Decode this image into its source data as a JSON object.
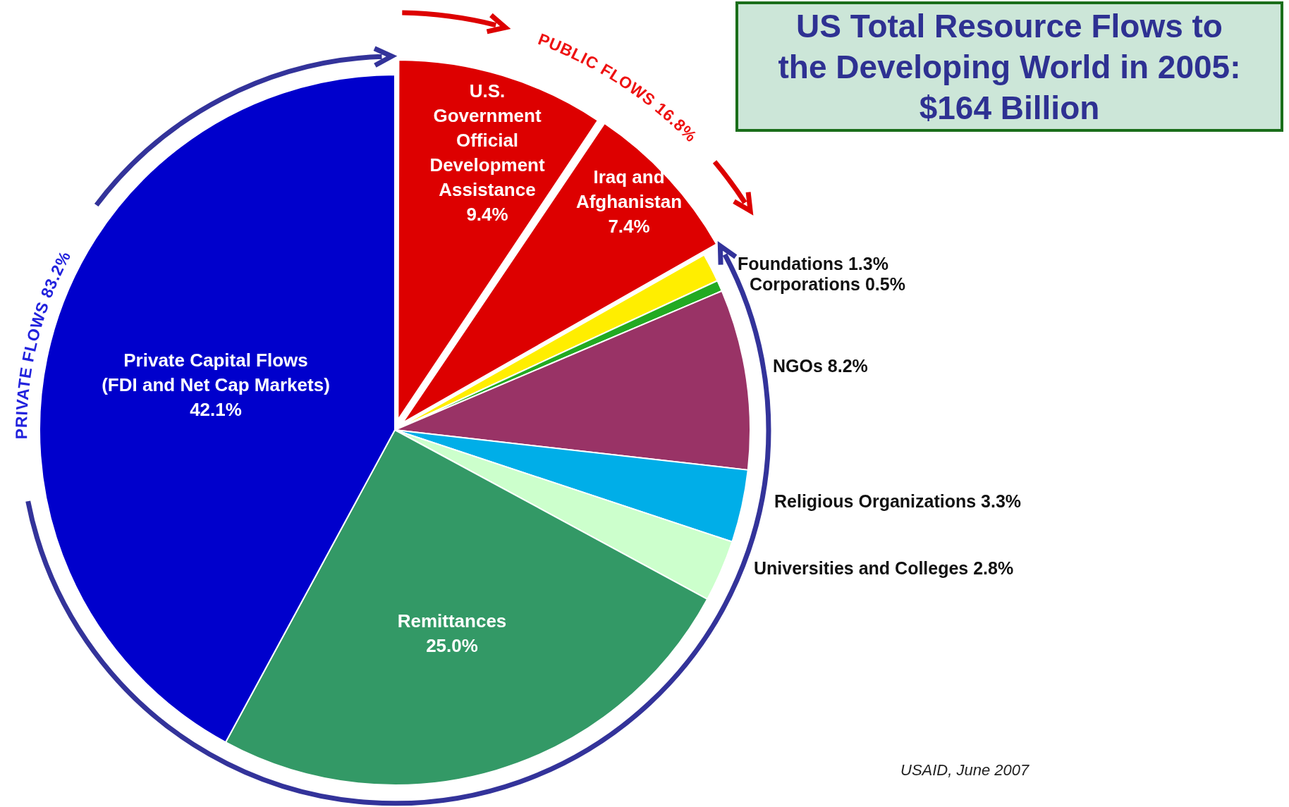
{
  "chart_data": {
    "type": "pie",
    "title": "US Total Resource Flows to the Developing World in 2005: $164 Billion",
    "categories": [
      "U.S. Government Official Development Assistance",
      "Iraq and Afghanistan",
      "Foundations",
      "Corporations",
      "NGOs",
      "Religious Organizations",
      "Universities and Colleges",
      "Remittances",
      "Private Capital Flows (FDI and Net Cap Markets)"
    ],
    "values": [
      9.4,
      7.4,
      1.3,
      0.5,
      8.2,
      3.3,
      2.8,
      25.0,
      42.1
    ],
    "colors": [
      "#dd0000",
      "#dd0000",
      "#ffee00",
      "#22aa22",
      "#993366",
      "#00aee8",
      "#ccffcc",
      "#339966",
      "#0000cc"
    ],
    "value_labels": [
      "9.4%",
      "7.4%",
      "1.3%",
      "0.5%",
      "8.2%",
      "3.3%",
      "2.8%",
      "25.0%",
      "42.1%"
    ],
    "annotations": [
      "PUBLIC FLOWS 16.8%",
      "PRIVATE FLOWS 83.2%",
      "USAID, June 2007"
    ]
  }
}
